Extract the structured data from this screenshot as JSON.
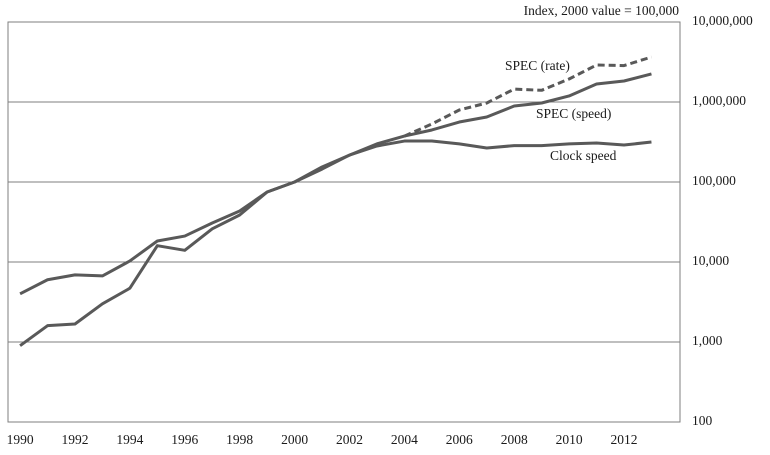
{
  "chart_data": {
    "type": "line",
    "y_axis_note": "Index, 2000 value = 100,000",
    "x": [
      1990,
      1991,
      1992,
      1993,
      1994,
      1995,
      1996,
      1997,
      1998,
      1999,
      2000,
      2001,
      2002,
      2003,
      2004,
      2005,
      2006,
      2007,
      2008,
      2009,
      2010,
      2011,
      2012,
      2013
    ],
    "series": [
      {
        "name": "SPEC (rate)",
        "color": "#595959",
        "line_style": "dashed",
        "values": [
          null,
          null,
          null,
          null,
          null,
          null,
          null,
          null,
          null,
          null,
          null,
          null,
          null,
          null,
          375000,
          531000,
          794000,
          972000,
          1450000,
          1400000,
          1940000,
          2900000,
          2850000,
          3650000
        ]
      },
      {
        "name": "SPEC (speed)",
        "color": "#595959",
        "line_style": "solid",
        "values": [
          900,
          1600,
          1680,
          3000,
          4700,
          16000,
          14000,
          26000,
          38700,
          75000,
          100000,
          145000,
          217000,
          300000,
          375000,
          447000,
          562000,
          649000,
          891000,
          972000,
          1190000,
          1680000,
          1830000,
          2240000
        ]
      },
      {
        "name": "Clock speed",
        "color": "#595959",
        "line_style": "solid",
        "values": [
          4000,
          6000,
          6900,
          6700,
          10300,
          18300,
          21100,
          30700,
          43400,
          75000,
          100000,
          154000,
          217000,
          282000,
          325000,
          325000,
          300000,
          266000,
          285000,
          285000,
          300000,
          307000,
          290000,
          316000
        ]
      }
    ],
    "xlim": [
      1989.56,
      2014.04
    ],
    "xticks": [
      1990,
      1992,
      1994,
      1996,
      1998,
      2000,
      2002,
      2004,
      2006,
      2008,
      2010,
      2012
    ],
    "yscale": "log",
    "ylim": [
      100,
      10000000
    ],
    "yticks": [
      100,
      {
        "value": 1000,
        "label": "1,000"
      },
      {
        "value": 10000,
        "label": "10,000"
      },
      {
        "value": 100000,
        "label": "100,000"
      },
      {
        "value": 1000000,
        "label": "1,000,000"
      },
      {
        "value": 10000000,
        "label": "10,000,000"
      }
    ],
    "grid": true
  }
}
